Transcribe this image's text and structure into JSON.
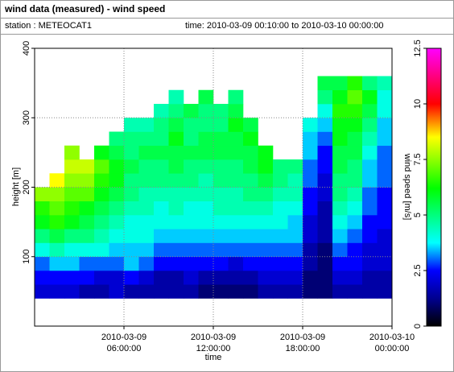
{
  "chart_data": {
    "type": "heatmap",
    "title": "wind data (measured) - wind speed",
    "station": "station : METEOCAT1",
    "time_range": "time: 2010-03-09 00:10:00 to 2010-03-10 00:00:00",
    "x_label": "time",
    "y_label": "height [m]",
    "colorbar_label": "wind speed [m/s]",
    "x": [
      "2010-03-09 00:30:00",
      "2010-03-09 01:30:00",
      "2010-03-09 02:30:00",
      "2010-03-09 03:30:00",
      "2010-03-09 04:30:00",
      "2010-03-09 05:30:00",
      "2010-03-09 06:30:00",
      "2010-03-09 07:30:00",
      "2010-03-09 08:30:00",
      "2010-03-09 09:30:00",
      "2010-03-09 10:30:00",
      "2010-03-09 11:30:00",
      "2010-03-09 12:30:00",
      "2010-03-09 13:30:00",
      "2010-03-09 14:30:00",
      "2010-03-09 15:30:00",
      "2010-03-09 16:30:00",
      "2010-03-09 17:30:00",
      "2010-03-09 18:30:00",
      "2010-03-09 19:30:00",
      "2010-03-09 20:30:00",
      "2010-03-09 21:30:00",
      "2010-03-09 22:30:00",
      "2010-03-09 23:30:00"
    ],
    "y": [
      50,
      70,
      90,
      110,
      130,
      150,
      170,
      190,
      210,
      230,
      250,
      270,
      290,
      310,
      330,
      350
    ],
    "values": [
      [
        2,
        2.5,
        3,
        4,
        5,
        6,
        6.5,
        7.5,
        null,
        null,
        null,
        null,
        null,
        null,
        null,
        null
      ],
      [
        2,
        2.5,
        3.5,
        4.5,
        5.5,
        6.5,
        7,
        7.5,
        8.5,
        null,
        null,
        null,
        null,
        null,
        null,
        null
      ],
      [
        2,
        2.5,
        3.5,
        4,
        5,
        6,
        6.5,
        7,
        7.5,
        8,
        7.5,
        null,
        null,
        null,
        null,
        null
      ],
      [
        1.5,
        2.5,
        3,
        4,
        5,
        5.5,
        6,
        7,
        7.5,
        8,
        null,
        null,
        null,
        null,
        null,
        null
      ],
      [
        1.5,
        2,
        3,
        4,
        4.5,
        5,
        5.5,
        6,
        6.5,
        7,
        6,
        null,
        null,
        null,
        null,
        null
      ],
      [
        2,
        2,
        3,
        3.5,
        4,
        4.5,
        5,
        5.5,
        6,
        6,
        5.5,
        5,
        null,
        null,
        null,
        null
      ],
      [
        1.5,
        2.5,
        3.5,
        3.5,
        4,
        4,
        4.5,
        5,
        5,
        5.5,
        5,
        5,
        4.5,
        null,
        null,
        null
      ],
      [
        1.5,
        2,
        3,
        3.5,
        4,
        4,
        4.5,
        4.5,
        5,
        5,
        5.5,
        5,
        4.5,
        null,
        null,
        null
      ],
      [
        1.5,
        1.5,
        2.5,
        3,
        3.5,
        4,
        4,
        4.5,
        5,
        5,
        5.5,
        5,
        5,
        4.5,
        null,
        null
      ],
      [
        1.5,
        1.5,
        2.5,
        3,
        3.5,
        4,
        4.5,
        4.5,
        5,
        5.5,
        5.5,
        6,
        5.5,
        5,
        4.5,
        null
      ],
      [
        1.5,
        2,
        2.5,
        3,
        3.5,
        4,
        4,
        4.5,
        5,
        5,
        5.5,
        5,
        5,
        5.5,
        null,
        null
      ],
      [
        1,
        1.5,
        2.5,
        3,
        3.5,
        4,
        4,
        4.5,
        4.5,
        5,
        5.5,
        5.5,
        5,
        5,
        5.5,
        null
      ],
      [
        1,
        1.5,
        2.5,
        3,
        3.5,
        4,
        4.5,
        4.5,
        5,
        5,
        5.5,
        5.5,
        5,
        5,
        null,
        null
      ],
      [
        1,
        1.5,
        2,
        3,
        3.5,
        4,
        4.5,
        4.5,
        5,
        5,
        5.5,
        5.5,
        6,
        5.5,
        5,
        null
      ],
      [
        1,
        1.5,
        2.5,
        3,
        3.5,
        4,
        4.5,
        5,
        5,
        5.5,
        5.5,
        6,
        5.5,
        null,
        null,
        null
      ],
      [
        1.5,
        2,
        2.5,
        3,
        3.5,
        4,
        4.5,
        5,
        5.5,
        6,
        6,
        null,
        null,
        null,
        null,
        null
      ],
      [
        1.5,
        2,
        2.5,
        3,
        3.5,
        4,
        4,
        4.5,
        5,
        5,
        null,
        null,
        null,
        null,
        null,
        null
      ],
      [
        1.5,
        2,
        2.5,
        3,
        3.5,
        3.5,
        4,
        4.5,
        4.5,
        5,
        null,
        null,
        null,
        null,
        null,
        null
      ],
      [
        1,
        1,
        1.5,
        1.5,
        2,
        2,
        2.5,
        2.5,
        3,
        3,
        3.5,
        3.5,
        4,
        null,
        null,
        null
      ],
      [
        1,
        1,
        1,
        1,
        1.5,
        1.5,
        1.5,
        2,
        2,
        2.5,
        2.5,
        3,
        3.5,
        4,
        5,
        5.5
      ],
      [
        1.5,
        2,
        2.5,
        3,
        3.5,
        4,
        4.5,
        5,
        5,
        5.5,
        5.5,
        6,
        6,
        6.5,
        6,
        5.5
      ],
      [
        1.5,
        2,
        2.5,
        2.5,
        3,
        3.5,
        4,
        4.5,
        5,
        5,
        5.5,
        5.5,
        6,
        6.5,
        7,
        6.5
      ],
      [
        1.5,
        1.5,
        2,
        2,
        2.5,
        2.5,
        3,
        3,
        3.5,
        3.5,
        4,
        4.5,
        5,
        5.5,
        6,
        5
      ],
      [
        1.5,
        1.5,
        2,
        2,
        2,
        2.5,
        2.5,
        2.5,
        3,
        3,
        3,
        3.5,
        3.5,
        4,
        4,
        4.5
      ]
    ],
    "xlim": [
      "2010-03-09 00:00:00",
      "2010-03-10 00:00:00"
    ],
    "xticks": [
      {
        "value": "2010-03-09 06:00:00",
        "label": [
          "2010-03-09",
          "06:00:00"
        ]
      },
      {
        "value": "2010-03-09 12:00:00",
        "label": [
          "2010-03-09",
          "12:00:00"
        ]
      },
      {
        "value": "2010-03-09 18:00:00",
        "label": [
          "2010-03-09",
          "18:00:00"
        ]
      },
      {
        "value": "2010-03-10 00:00:00",
        "label": [
          "2010-03-10",
          "00:00:00"
        ]
      }
    ],
    "ylim": [
      0,
      400
    ],
    "yticks": [
      100,
      200,
      300,
      400
    ],
    "clim": [
      0,
      12.5
    ],
    "cticks": [
      0,
      2.5,
      5,
      7.5,
      10,
      12.5
    ],
    "colorscale": [
      [
        0,
        "#000000"
      ],
      [
        1.2,
        "#00008b"
      ],
      [
        2.5,
        "#0000ff"
      ],
      [
        3.75,
        "#00ffff"
      ],
      [
        6.2,
        "#00ff00"
      ],
      [
        8.5,
        "#ffff00"
      ],
      [
        10,
        "#ff0000"
      ],
      [
        12.5,
        "#ff00ff"
      ]
    ],
    "grid": true
  }
}
